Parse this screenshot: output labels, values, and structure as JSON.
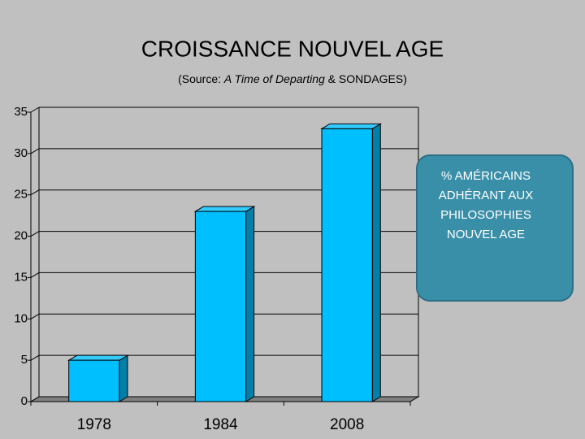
{
  "chart_data": {
    "type": "bar3d",
    "title": "CROISSANCE NOUVEL AGE",
    "subtitle": {
      "prefix": "(Source: ",
      "italic": "A Time of Departing",
      "suffix": " & SONDAGES)"
    },
    "annotation": [
      "% AMÉRICAINS",
      "ADHÉRANT AUX",
      "PHILOSOPHIES",
      "NOUVEL AGE"
    ],
    "categories": [
      "1978",
      "1984",
      "2008"
    ],
    "values": [
      5,
      23,
      33
    ],
    "color": "#00bfff",
    "ylim": [
      0,
      35
    ],
    "yticks": [
      0,
      5,
      10,
      15,
      20,
      25,
      30,
      35
    ],
    "grid": true
  }
}
